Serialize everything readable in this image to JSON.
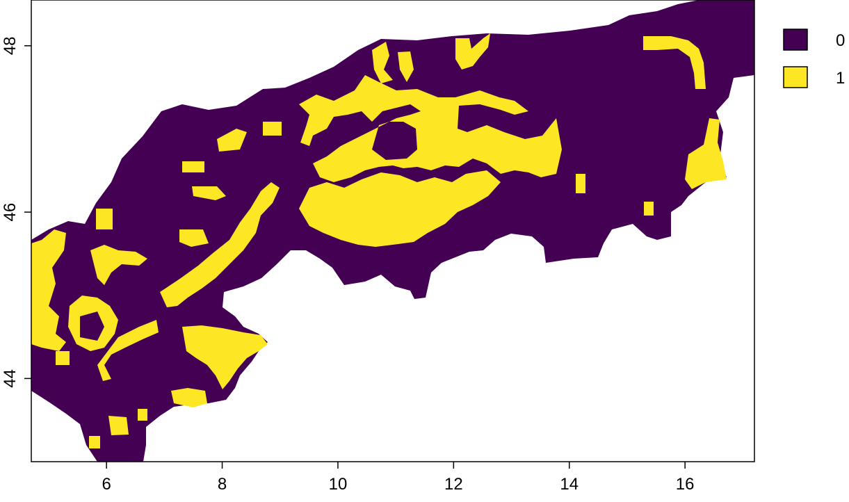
{
  "chart_data": {
    "type": "raster",
    "title": "",
    "xlabel": "",
    "ylabel": "",
    "xlim": [
      4.7,
      17.2
    ],
    "ylim": [
      43.0,
      48.55
    ],
    "x_ticks": [
      6,
      8,
      10,
      12,
      14,
      16
    ],
    "y_ticks": [
      44,
      46,
      48
    ],
    "grid": false,
    "legend": {
      "position": "top-right",
      "entries": [
        {
          "label": "0",
          "color": "#440154"
        },
        {
          "label": "1",
          "color": "#FDE725"
        }
      ]
    },
    "colors": {
      "class_0": "#440154",
      "class_1": "#FDE725",
      "background": "#FFFFFF"
    }
  }
}
